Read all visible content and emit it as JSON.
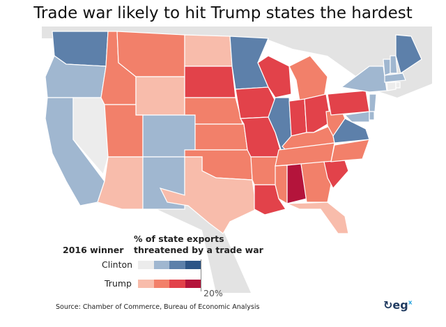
{
  "title": "Trade war likely to hit Trump states the hardest",
  "legend": {
    "winner_heading": "2016 winner",
    "scale_heading_line1": "% of state exports",
    "scale_heading_line2": "threatened by a trade war",
    "clinton_label": "Clinton",
    "trump_label": "Trump",
    "tick_label": "20%",
    "clinton_colors": [
      "#ececec",
      "#a0b7d0",
      "#5d80aa",
      "#2d5586"
    ],
    "trump_colors": [
      "#f8bcab",
      "#f2806a",
      "#e2424a",
      "#b4143b"
    ]
  },
  "source": "Source: Chamber of Commerce, Bureau of Economic Analysis",
  "logo": {
    "text": "eg",
    "sup": "x"
  },
  "state_fills": {
    "WA": "c3",
    "OR": "c2",
    "CA": "c2",
    "NV": "c1",
    "ID": "t2",
    "MT": "t2",
    "WY": "t1",
    "UT": "t2",
    "CO": "c2",
    "AZ": "t1",
    "NM": "c2",
    "ND": "t1",
    "SD": "t3",
    "NE": "t2",
    "KS": "t2",
    "OK": "t2",
    "TX": "t1",
    "MN": "c3",
    "IA": "t3",
    "MO": "t3",
    "AR": "t2",
    "LA": "t3",
    "WI": "t3",
    "IL": "c3",
    "MI": "t2",
    "IN": "t3",
    "OH": "t3",
    "KY": "t2",
    "TN": "t2",
    "MS": "t2",
    "AL": "t4",
    "GA": "t2",
    "FL": "t1",
    "SC": "t3",
    "NC": "t2",
    "VA": "c3",
    "WV": "t2",
    "PA": "t3",
    "NY": "c2",
    "VT": "c2",
    "NH": "c2",
    "ME": "c3",
    "MA": "c2",
    "CT": "c1",
    "RI": "c1",
    "NJ": "c2",
    "MD": "c2",
    "DE": "c2"
  }
}
